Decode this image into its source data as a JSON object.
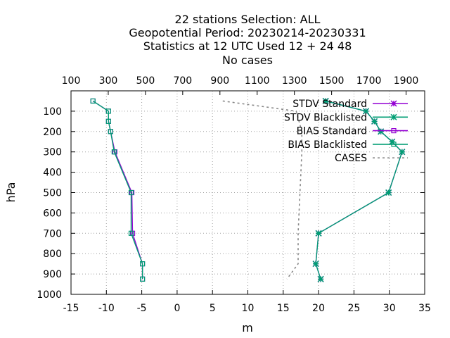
{
  "chart_data": {
    "type": "line",
    "title_lines": [
      "22 stations Selection: ALL",
      "Geopotential  Period: 20230214-20230331",
      "Statistics at 12 UTC  Used  12 + 24 48",
      "No cases"
    ],
    "xlabel": "m",
    "ylabel": "hPa",
    "xlim": [
      -15,
      35
    ],
    "ylim": [
      1000,
      0
    ],
    "x_ticks": [
      -15,
      -10,
      -5,
      0,
      5,
      10,
      15,
      20,
      25,
      30,
      35
    ],
    "x_tick_labels": [
      "-15",
      "-10",
      "-5",
      "0",
      "5",
      "10",
      "15",
      "20",
      "25",
      "30",
      "35"
    ],
    "y_ticks": [
      100,
      200,
      300,
      400,
      500,
      600,
      700,
      800,
      900,
      1000
    ],
    "y_tick_labels": [
      "100",
      "200",
      "300",
      "400",
      "500",
      "600",
      "700",
      "800",
      "900",
      "1000"
    ],
    "x2lim": [
      100,
      2000
    ],
    "x2_ticks": [
      100,
      300,
      500,
      700,
      900,
      1100,
      1300,
      1500,
      1700,
      1900
    ],
    "x2_tick_labels": [
      "100",
      "300",
      "500",
      "700",
      "900",
      "1100",
      "1300",
      "1500",
      "1700",
      "1900"
    ],
    "grid": true,
    "legend_position": "top-right",
    "series": [
      {
        "name": "STDV Standard",
        "axis": "x1",
        "color": "#9400d3",
        "marker": "star",
        "points": [
          [
            21.0,
            50
          ],
          [
            26.7,
            100
          ],
          [
            27.9,
            150
          ],
          [
            28.8,
            200
          ],
          [
            30.4,
            250
          ],
          [
            31.8,
            300
          ],
          [
            29.9,
            500
          ],
          [
            20.0,
            700
          ],
          [
            19.6,
            850
          ],
          [
            20.3,
            925
          ]
        ]
      },
      {
        "name": "STDV Blacklisted",
        "axis": "x1",
        "color": "#009e73",
        "marker": "star",
        "points": [
          [
            21.0,
            50
          ],
          [
            26.7,
            100
          ],
          [
            27.9,
            150
          ],
          [
            28.8,
            200
          ],
          [
            30.4,
            250
          ],
          [
            31.8,
            300
          ],
          [
            29.9,
            500
          ],
          [
            20.0,
            700
          ],
          [
            19.6,
            850
          ],
          [
            20.3,
            925
          ]
        ]
      },
      {
        "name": "BIAS Standard",
        "axis": "x1",
        "color": "#9400d3",
        "marker": "square",
        "points": [
          [
            -11.9,
            50
          ],
          [
            -9.7,
            100
          ],
          [
            -9.7,
            150
          ],
          [
            -9.4,
            200
          ],
          [
            -8.8,
            300
          ],
          [
            -6.4,
            500
          ],
          [
            -6.3,
            700
          ],
          [
            -4.9,
            850
          ],
          [
            -4.9,
            925
          ]
        ]
      },
      {
        "name": "BIAS Blacklisted",
        "axis": "x1",
        "color": "#009e73",
        "marker": "square",
        "points": [
          [
            -11.9,
            50
          ],
          [
            -9.7,
            100
          ],
          [
            -9.7,
            150
          ],
          [
            -9.4,
            200
          ],
          [
            -8.9,
            300
          ],
          [
            -6.5,
            500
          ],
          [
            -6.5,
            700
          ],
          [
            -4.9,
            850
          ],
          [
            -4.9,
            925
          ]
        ]
      },
      {
        "name": "CASES",
        "axis": "x2",
        "color": "#888888",
        "marker": "none",
        "dashed": true,
        "points": [
          [
            915,
            50
          ],
          [
            1310,
            100
          ],
          [
            1340,
            200
          ],
          [
            1340,
            300
          ],
          [
            1330,
            500
          ],
          [
            1320,
            700
          ],
          [
            1320,
            850
          ],
          [
            1260,
            925
          ]
        ]
      }
    ]
  }
}
